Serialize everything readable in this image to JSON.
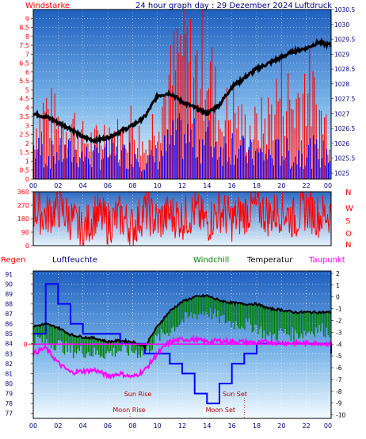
{
  "page": {
    "title": "24 hour graph day : 29 Dezember 2024"
  },
  "colors": {
    "wind": "#ff0000",
    "gust_fill": "#ff0000",
    "wind_fill": "#0000ff",
    "pressure": "#000000",
    "humidity": "#0000ff",
    "temperature": "#000000",
    "windchill": "#008000",
    "dewpoint": "#ff00ff",
    "rain": "#ff0000",
    "sun_label": "#c00000",
    "moon_label": "#c00000",
    "axis_left_top": "#ff0000",
    "axis_right": "#000080",
    "grid": "#ffffff"
  },
  "chart_data": [
    {
      "id": "wind_pressure",
      "type": "bar+line",
      "left_label": "Windstarke",
      "right_label": "Luftdruck",
      "x_ticks": [
        "00",
        "02",
        "04",
        "06",
        "08",
        "10",
        "12",
        "14",
        "16",
        "18",
        "20",
        "22",
        "00"
      ],
      "y_left_ticks": [
        "0",
        "0.5",
        "1",
        "1.5",
        "2",
        "2.5",
        "3",
        "3.5",
        "4",
        "4.5",
        "5",
        "5.5",
        "6",
        "6.5",
        "7",
        "7.5",
        "8",
        "8.5",
        "9"
      ],
      "y_left_range": [
        0,
        9.5
      ],
      "y_right_ticks": [
        "1025",
        "1025.5",
        "1026",
        "1026.5",
        "1027",
        "1027.5",
        "1028",
        "1028.5",
        "1029",
        "1029.5",
        "1030",
        "1030.5"
      ],
      "y_right_range": [
        1024.8,
        1030.5
      ],
      "hours": [
        0,
        1,
        2,
        3,
        4,
        5,
        6,
        7,
        8,
        9,
        10,
        11,
        12,
        13,
        14,
        15,
        16,
        17,
        18,
        19,
        20,
        21,
        22,
        23,
        24
      ],
      "pressure_hpa": [
        1027.0,
        1026.9,
        1026.7,
        1026.5,
        1026.2,
        1026.1,
        1026.2,
        1026.4,
        1026.6,
        1026.9,
        1027.6,
        1027.7,
        1027.4,
        1027.2,
        1027.0,
        1027.3,
        1027.9,
        1028.2,
        1028.5,
        1028.7,
        1028.9,
        1029.1,
        1029.2,
        1029.4,
        1029.3
      ],
      "wind_ms": [
        2.2,
        1.6,
        1.8,
        1.8,
        1.6,
        1.5,
        1.8,
        1.6,
        1.9,
        1.2,
        1.5,
        2.5,
        3.0,
        2.6,
        2.8,
        2.2,
        2.5,
        1.8,
        1.7,
        1.6,
        2.0,
        1.5,
        2.0,
        1.8,
        1.6
      ],
      "gust_ms": [
        3.5,
        5.0,
        3.8,
        4.2,
        2.8,
        2.6,
        3.5,
        2.9,
        4.0,
        2.0,
        5.0,
        6.5,
        9.5,
        7.5,
        9.0,
        4.0,
        5.0,
        3.5,
        3.6,
        4.4,
        6.5,
        5.0,
        7.0,
        4.5,
        3.5
      ]
    },
    {
      "id": "wind_direction",
      "type": "line",
      "y_ticks": [
        "0",
        "90",
        "180",
        "270",
        "360"
      ],
      "y_range": [
        0,
        360
      ],
      "right_labels": [
        "N",
        "W",
        "S",
        "O",
        "N"
      ],
      "hours": [
        0,
        1,
        2,
        3,
        4,
        5,
        6,
        7,
        8,
        9,
        10,
        11,
        12,
        13,
        14,
        15,
        16,
        17,
        18,
        19,
        20,
        21,
        22,
        23,
        24
      ],
      "direction_deg": [
        250,
        200,
        260,
        180,
        90,
        220,
        150,
        200,
        120,
        240,
        160,
        210,
        180,
        230,
        150,
        240,
        170,
        220,
        260,
        200,
        240,
        180,
        250,
        200,
        220
      ]
    },
    {
      "id": "temp_hum",
      "type": "line",
      "labels": {
        "rain": "Regen",
        "humidity": "Luftfeuchte",
        "windchill": "Windchill",
        "temperature": "Temperatur",
        "dewpoint": "Taupunkt"
      },
      "x_ticks": [
        "00",
        "02",
        "04",
        "06",
        "08",
        "10",
        "12",
        "14",
        "16",
        "18",
        "20",
        "22",
        "00"
      ],
      "y_left_ticks": [
        "77",
        "78",
        "79",
        "80",
        "81",
        "82",
        "83",
        "84",
        "85",
        "86",
        "87",
        "88",
        "89",
        "90",
        "91"
      ],
      "y_left_range": [
        76.5,
        91.3
      ],
      "y_right_ticks": [
        "2",
        "1",
        "0",
        "-1",
        "-2",
        "-3",
        "-4",
        "-5",
        "-6",
        "-7",
        "-8",
        "-9",
        "-10"
      ],
      "y_right_range": [
        -10.3,
        2.2
      ],
      "rain_ticks": [
        "0"
      ],
      "hours": [
        0,
        1,
        2,
        3,
        4,
        5,
        6,
        7,
        8,
        9,
        10,
        11,
        12,
        13,
        14,
        15,
        16,
        17,
        18,
        19,
        20,
        21,
        22,
        23,
        24
      ],
      "humidity_pct": [
        85,
        90,
        88,
        86,
        85,
        85,
        85,
        84,
        84,
        83,
        83,
        82,
        81,
        79,
        78,
        80,
        82,
        83,
        84,
        84,
        84,
        84,
        84,
        84,
        83
      ],
      "temperature_c": [
        -2.5,
        -2.3,
        -2.6,
        -3.2,
        -3.4,
        -3.5,
        -3.8,
        -3.7,
        -3.8,
        -4.2,
        -2.5,
        -1.2,
        -0.4,
        0.0,
        0.1,
        -0.3,
        -0.5,
        -0.6,
        -0.6,
        -1.0,
        -1.1,
        -1.3,
        -1.3,
        -1.3,
        -1.3
      ],
      "windchill_c": [
        -3.5,
        -3.8,
        -4.0,
        -4.6,
        -4.6,
        -4.8,
        -4.8,
        -4.5,
        -4.6,
        -4.8,
        -3.5,
        -2.8,
        -2.0,
        -1.5,
        -1.2,
        -1.8,
        -2.2,
        -2.3,
        -2.5,
        -3.5,
        -3.0,
        -3.2,
        -3.0,
        -2.7,
        -3.0
      ],
      "dewpoint_c": [
        -4.8,
        -4.3,
        -5.6,
        -6.4,
        -6.3,
        -6.2,
        -6.7,
        -6.5,
        -6.8,
        -6.2,
        -4.8,
        -3.8,
        -3.6,
        -3.6,
        -3.8,
        -3.7,
        -3.8,
        -3.8,
        -3.9,
        -3.8,
        -3.9,
        -3.9,
        -3.9,
        -3.9,
        -4.0
      ],
      "rain_mm": [
        0,
        0,
        0,
        0,
        0,
        0,
        0,
        0,
        0,
        0,
        0,
        0,
        0,
        0,
        0,
        0,
        0,
        0,
        0,
        0,
        0,
        0,
        0,
        0,
        0
      ],
      "annotations": {
        "sun_rise": "Sun Rise",
        "sun_set": "Sun Set",
        "moon_rise": "Moon Rise",
        "moon_set": "Moon Set"
      },
      "events_hours": {
        "sun_rise": 8.3,
        "sun_set": 16.5,
        "moon_rise": 9.0,
        "moon_set": 17.0
      }
    }
  ]
}
